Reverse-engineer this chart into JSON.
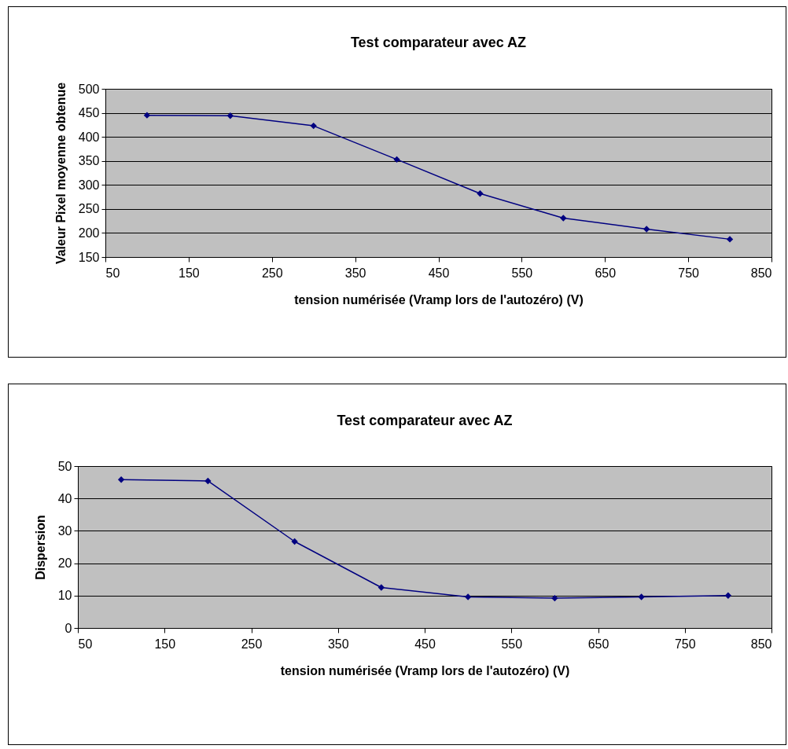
{
  "chart_data": [
    {
      "type": "line",
      "title": "Test comparateur avec AZ",
      "xlabel": "tension numérisée (Vramp lors de l'autozéro) (V)",
      "ylabel": "Valeur Pixel moyenne obtenue",
      "x": [
        100,
        200,
        300,
        400,
        500,
        600,
        700,
        800
      ],
      "series": [
        {
          "color": "#000080",
          "values": [
            445,
            444,
            423,
            353,
            282,
            231,
            208,
            187
          ]
        }
      ],
      "xlim": [
        50,
        850
      ],
      "xticks": [
        50,
        150,
        250,
        350,
        450,
        550,
        650,
        750,
        850
      ],
      "ylim": [
        150,
        500
      ],
      "yticks": [
        150,
        200,
        250,
        300,
        350,
        400,
        450,
        500
      ],
      "grid": "y",
      "legend": false,
      "marker": "diamond",
      "line_style": "solid"
    },
    {
      "type": "line",
      "title": "Test comparateur avec AZ",
      "xlabel": "tension numérisée (Vramp lors de l'autozéro) (V)",
      "ylabel": "Dispersion",
      "x": [
        100,
        200,
        300,
        400,
        500,
        600,
        700,
        800
      ],
      "series": [
        {
          "color": "#000080",
          "values": [
            45.8,
            45.4,
            26.7,
            12.5,
            9.6,
            9.2,
            9.6,
            10.0
          ]
        }
      ],
      "xlim": [
        50,
        850
      ],
      "xticks": [
        50,
        150,
        250,
        350,
        450,
        550,
        650,
        750,
        850
      ],
      "ylim": [
        0,
        50
      ],
      "yticks": [
        0,
        10,
        20,
        30,
        40,
        50
      ],
      "grid": "y",
      "legend": false,
      "marker": "diamond",
      "line_style": "solid"
    }
  ]
}
